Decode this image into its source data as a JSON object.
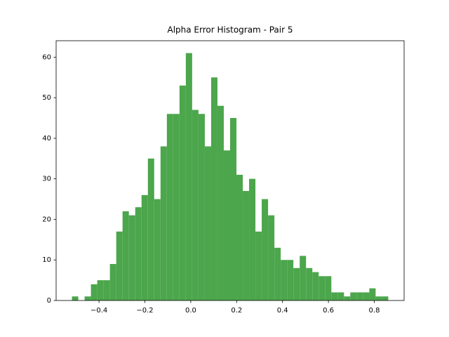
{
  "chart_data": {
    "type": "histogram",
    "title": "Alpha Error Histogram - Pair 5",
    "bins": [
      -0.518,
      -0.4904,
      -0.4628,
      -0.4353,
      -0.4077,
      -0.3801,
      -0.3525,
      -0.3249,
      -0.2974,
      -0.2698,
      -0.2422,
      -0.2146,
      -0.187,
      -0.1595,
      -0.1319,
      -0.1043,
      -0.0767,
      -0.0491,
      -0.0216,
      0.006,
      0.0336,
      0.0612,
      0.0888,
      0.1163,
      0.1439,
      0.1715,
      0.1991,
      0.2267,
      0.2542,
      0.2818,
      0.3094,
      0.337,
      0.3646,
      0.3921,
      0.4197,
      0.4473,
      0.4749,
      0.5025,
      0.53,
      0.5576,
      0.5852,
      0.6128,
      0.6404,
      0.6679,
      0.6955,
      0.7231,
      0.7507,
      0.7783,
      0.8058,
      0.8334,
      0.861
    ],
    "values": [
      1,
      0,
      1,
      4,
      5,
      5,
      9,
      17,
      22,
      21,
      23,
      26,
      35,
      25,
      38,
      46,
      46,
      53,
      61,
      47,
      46,
      38,
      55,
      48,
      37,
      45,
      31,
      27,
      30,
      17,
      25,
      21,
      13,
      10,
      10,
      8,
      11,
      8,
      7,
      6,
      6,
      2,
      2,
      1,
      2,
      2,
      2,
      3,
      1,
      1
    ],
    "color": "#4ca64c",
    "xlim": [
      -0.587,
      0.93
    ],
    "ylim": [
      0,
      64.05
    ],
    "xticks": [
      {
        "value": -0.4,
        "label": "−0.4"
      },
      {
        "value": -0.2,
        "label": "−0.2"
      },
      {
        "value": 0.0,
        "label": "0.0"
      },
      0.2,
      0.4,
      0.6,
      0.8
    ],
    "yticks": [
      0,
      10,
      20,
      30,
      40,
      50,
      60
    ]
  }
}
